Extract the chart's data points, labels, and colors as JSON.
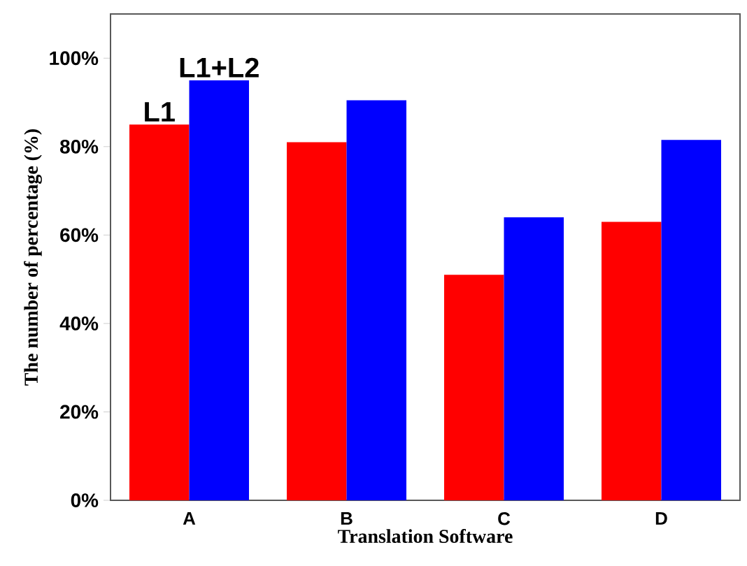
{
  "chart_data": {
    "type": "bar",
    "xlabel": "Translation Software",
    "ylabel": "The number of percentage (%)",
    "categories": [
      "A",
      "B",
      "C",
      "D"
    ],
    "series": [
      {
        "name": "L1",
        "color": "#ff0000",
        "values": [
          85,
          81,
          51,
          63
        ]
      },
      {
        "name": "L1+L2",
        "color": "#0000ff",
        "values": [
          95,
          90.5,
          64,
          81.5
        ]
      }
    ],
    "ylim": [
      0,
      110
    ],
    "yticks": [
      {
        "value": 0,
        "label": "0%"
      },
      {
        "value": 20,
        "label": "20%"
      },
      {
        "value": 40,
        "label": "40%"
      },
      {
        "value": 60,
        "label": "60%"
      },
      {
        "value": 80,
        "label": "80%"
      },
      {
        "value": 100,
        "label": "100%"
      }
    ]
  }
}
